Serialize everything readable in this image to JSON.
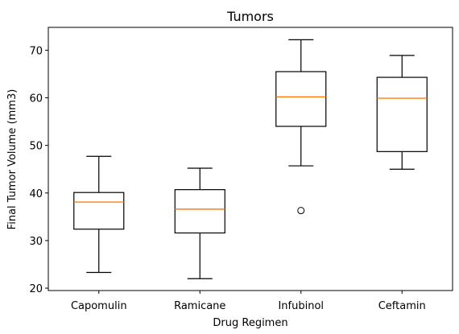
{
  "chart_data": {
    "type": "box",
    "title": "Tumors",
    "xlabel": "Drug Regimen",
    "ylabel": "Final Tumor Volume (mm3)",
    "ylim": [
      19.5,
      74.8
    ],
    "yticks": [
      20,
      30,
      40,
      50,
      60,
      70
    ],
    "grid": false,
    "categories": [
      "Capomulin",
      "Ramicane",
      "Infubinol",
      "Ceftamin"
    ],
    "boxes": [
      {
        "whisker_low": 23.3,
        "q1": 32.4,
        "median": 38.1,
        "q3": 40.1,
        "whisker_high": 47.7,
        "outliers": []
      },
      {
        "whisker_low": 22.0,
        "q1": 31.6,
        "median": 36.6,
        "q3": 40.7,
        "whisker_high": 45.2,
        "outliers": []
      },
      {
        "whisker_low": 45.7,
        "q1": 54.0,
        "median": 60.2,
        "q3": 65.5,
        "whisker_high": 72.2,
        "outliers": [
          36.3
        ]
      },
      {
        "whisker_low": 45.0,
        "q1": 48.7,
        "median": 59.9,
        "q3": 64.3,
        "whisker_high": 68.9,
        "outliers": []
      }
    ],
    "colors": {
      "box": "#000000",
      "median": "#ff7f0e",
      "outlier": "#000000"
    }
  }
}
